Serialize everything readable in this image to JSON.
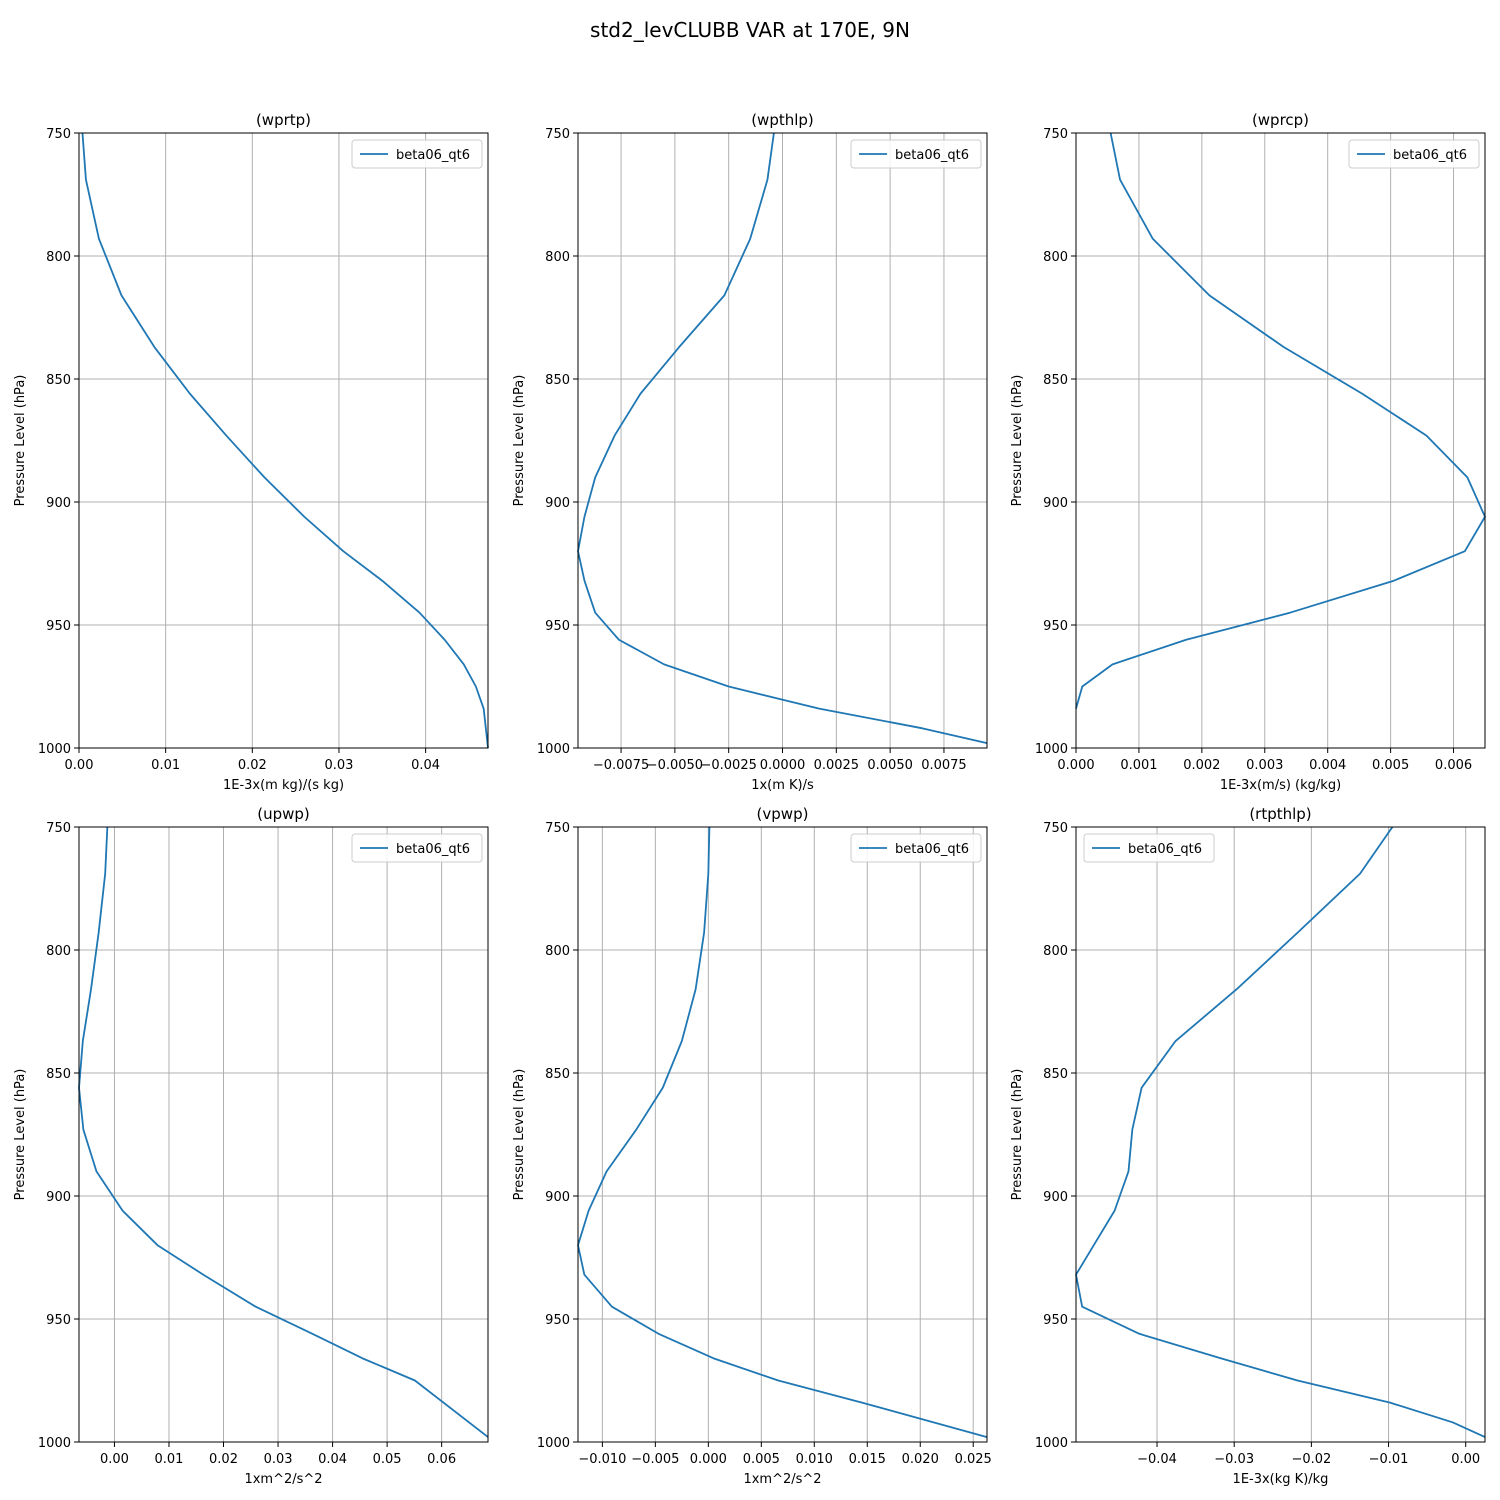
{
  "figure": {
    "title": "std2_levCLUBB VAR at 170E, 9N"
  },
  "colors": {
    "series": "#1f77b4",
    "grid": "#b0b0b0"
  },
  "chart_data": [
    {
      "type": "line",
      "title": "(wprtp)",
      "xlabel": "1E-3x(m kg)/(s kg)",
      "ylabel": "Pressure Level (hPa)",
      "xlim": [
        0.0,
        0.0472
      ],
      "ylim": [
        1000,
        750
      ],
      "y_inverted": true,
      "xticks": [
        0.0,
        0.01,
        0.02,
        0.03,
        0.04
      ],
      "xtick_labels": [
        "0.00",
        "0.01",
        "0.02",
        "0.03",
        "0.04"
      ],
      "yticks": [
        750,
        800,
        850,
        900,
        950,
        1000
      ],
      "ytick_labels": [
        "750",
        "800",
        "850",
        "900",
        "950",
        "1000"
      ],
      "grid": true,
      "legend_position": "upper right",
      "series": [
        {
          "name": "beta06_qt6",
          "x": [
            0.0004,
            0.0008,
            0.0023,
            0.0049,
            0.0087,
            0.0128,
            0.017,
            0.0214,
            0.026,
            0.0305,
            0.035,
            0.0393,
            0.0422,
            0.0444,
            0.0458,
            0.0467,
            0.0472
          ],
          "y": [
            750,
            769,
            793,
            816,
            837,
            856,
            873,
            890,
            906,
            920,
            932,
            945,
            956,
            966,
            975,
            984,
            1000
          ]
        }
      ]
    },
    {
      "type": "line",
      "title": "(wpthlp)",
      "xlabel": "1x(m K)/s",
      "ylabel": "Pressure Level (hPa)",
      "xlim": [
        -0.0095,
        0.0095
      ],
      "ylim": [
        1000,
        750
      ],
      "y_inverted": true,
      "xticks": [
        -0.0075,
        -0.005,
        -0.0025,
        0.0,
        0.0025,
        0.005,
        0.0075
      ],
      "xtick_labels": [
        "−0.0075",
        "−0.0050",
        "−0.0025",
        "0.0000",
        "0.0025",
        "0.0050",
        "0.0075"
      ],
      "yticks": [
        750,
        800,
        850,
        900,
        950,
        1000
      ],
      "ytick_labels": [
        "750",
        "800",
        "850",
        "900",
        "950",
        "1000"
      ],
      "grid": true,
      "legend_position": "upper right",
      "series": [
        {
          "name": "beta06_qt6",
          "x": [
            -0.0004,
            -0.0007,
            -0.0015,
            -0.0027,
            -0.0048,
            -0.0066,
            -0.0078,
            -0.0087,
            -0.0092,
            -0.0095,
            -0.0092,
            -0.0087,
            -0.0076,
            -0.0055,
            -0.0025,
            0.0017,
            0.0065,
            0.0095
          ],
          "y": [
            750,
            769,
            793,
            816,
            837,
            856,
            873,
            890,
            906,
            920,
            932,
            945,
            956,
            966,
            975,
            984,
            992,
            998
          ]
        }
      ]
    },
    {
      "type": "line",
      "title": "(wprcp)",
      "xlabel": "1E-3x(m/s) (kg/kg)",
      "ylabel": "Pressure Level (hPa)",
      "xlim": [
        0.0,
        0.0065
      ],
      "ylim": [
        1000,
        750
      ],
      "y_inverted": true,
      "xticks": [
        0.0,
        0.001,
        0.002,
        0.003,
        0.004,
        0.005,
        0.006
      ],
      "xtick_labels": [
        "0.000",
        "0.001",
        "0.002",
        "0.003",
        "0.004",
        "0.005",
        "0.006"
      ],
      "yticks": [
        750,
        800,
        850,
        900,
        950,
        1000
      ],
      "ytick_labels": [
        "750",
        "800",
        "850",
        "900",
        "950",
        "1000"
      ],
      "grid": true,
      "legend_position": "upper right",
      "series": [
        {
          "name": "beta06_qt6",
          "x": [
            0.00055,
            0.0007,
            0.00122,
            0.00212,
            0.0033,
            0.00455,
            0.00557,
            0.00622,
            0.0065,
            0.00618,
            0.00505,
            0.0034,
            0.00175,
            0.00058,
            0.0001,
            0.0
          ],
          "y": [
            750,
            769,
            793,
            816,
            837,
            856,
            873,
            890,
            906,
            920,
            932,
            945,
            956,
            966,
            975,
            984
          ]
        }
      ]
    },
    {
      "type": "line",
      "title": "(upwp)",
      "xlabel": "1xm^2/s^2",
      "ylabel": "Pressure Level (hPa)",
      "xlim": [
        -0.0065,
        0.0685
      ],
      "ylim": [
        1000,
        750
      ],
      "y_inverted": true,
      "xticks": [
        0.0,
        0.01,
        0.02,
        0.03,
        0.04,
        0.05,
        0.06
      ],
      "xtick_labels": [
        "0.00",
        "0.01",
        "0.02",
        "0.03",
        "0.04",
        "0.05",
        "0.06"
      ],
      "yticks": [
        750,
        800,
        850,
        900,
        950,
        1000
      ],
      "ytick_labels": [
        "750",
        "800",
        "850",
        "900",
        "950",
        "1000"
      ],
      "grid": true,
      "legend_position": "upper right",
      "series": [
        {
          "name": "beta06_qt6",
          "x": [
            -0.0013,
            -0.0017,
            -0.0029,
            -0.0043,
            -0.0058,
            -0.0065,
            -0.0057,
            -0.0033,
            0.0015,
            0.0079,
            0.0163,
            0.0259,
            0.0363,
            0.0455,
            0.0551,
            0.0685
          ],
          "y": [
            750,
            769,
            793,
            816,
            837,
            856,
            873,
            890,
            906,
            920,
            932,
            945,
            956,
            966,
            975,
            998
          ]
        }
      ]
    },
    {
      "type": "line",
      "title": "(vpwp)",
      "xlabel": "1xm^2/s^2",
      "ylabel": "Pressure Level (hPa)",
      "xlim": [
        -0.0123,
        0.0263
      ],
      "ylim": [
        1000,
        750
      ],
      "y_inverted": true,
      "xticks": [
        -0.01,
        -0.005,
        0.0,
        0.005,
        0.01,
        0.015,
        0.02,
        0.025
      ],
      "xtick_labels": [
        "−0.010",
        "−0.005",
        "0.000",
        "0.005",
        "0.010",
        "0.015",
        "0.020",
        "0.025"
      ],
      "yticks": [
        750,
        800,
        850,
        900,
        950,
        1000
      ],
      "ytick_labels": [
        "750",
        "800",
        "850",
        "900",
        "950",
        "1000"
      ],
      "grid": true,
      "legend_position": "upper right",
      "series": [
        {
          "name": "beta06_qt6",
          "x": [
            0.0001,
            0.0,
            -0.0004,
            -0.0012,
            -0.0025,
            -0.0043,
            -0.0068,
            -0.0096,
            -0.0113,
            -0.0123,
            -0.0117,
            -0.0091,
            -0.0047,
            0.0005,
            0.0066,
            0.0145,
            0.0263
          ],
          "y": [
            750,
            769,
            793,
            816,
            837,
            856,
            873,
            890,
            906,
            920,
            932,
            945,
            956,
            966,
            975,
            984,
            998
          ]
        }
      ]
    },
    {
      "type": "line",
      "title": "(rtpthlp)",
      "xlabel": "1E-3x(kg K)/kg",
      "ylabel": "Pressure Level (hPa)",
      "xlim": [
        -0.0505,
        0.0025
      ],
      "ylim": [
        1000,
        750
      ],
      "y_inverted": true,
      "xticks": [
        -0.04,
        -0.03,
        -0.02,
        -0.01,
        0.0
      ],
      "xtick_labels": [
        "−0.04",
        "−0.03",
        "−0.02",
        "−0.01",
        "0.00"
      ],
      "yticks": [
        750,
        800,
        850,
        900,
        950,
        1000
      ],
      "ytick_labels": [
        "750",
        "800",
        "850",
        "900",
        "950",
        "1000"
      ],
      "grid": true,
      "legend_position": "upper left",
      "series": [
        {
          "name": "beta06_qt6",
          "x": [
            -0.0095,
            -0.0137,
            -0.0218,
            -0.0297,
            -0.0376,
            -0.042,
            -0.0432,
            -0.0437,
            -0.0455,
            -0.0482,
            -0.0505,
            -0.0497,
            -0.0423,
            -0.0317,
            -0.0218,
            -0.0098,
            -0.0017,
            0.0025
          ],
          "y": [
            750,
            769,
            793,
            816,
            837,
            856,
            873,
            890,
            906,
            920,
            932,
            945,
            956,
            966,
            975,
            984,
            992,
            998
          ]
        }
      ]
    }
  ]
}
